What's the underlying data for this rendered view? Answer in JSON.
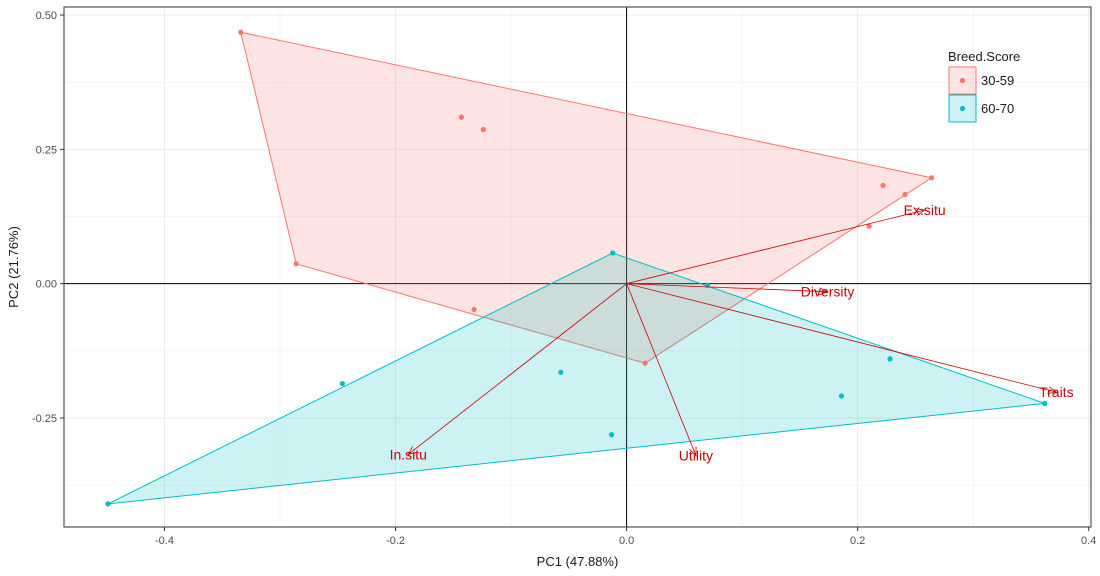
{
  "chart_data": {
    "type": "scatter",
    "subtype": "pca-biplot",
    "xlabel": "PC1 (47.88%)",
    "ylabel": "PC2 (21.76%)",
    "xlim": [
      -0.487,
      0.402
    ],
    "ylim": [
      -0.453,
      0.515
    ],
    "x_ticks": [
      -0.4,
      -0.2,
      0.0,
      0.2,
      0.4
    ],
    "x_tick_labels": [
      "-0.4",
      "-0.2",
      "0.0",
      "0.2",
      "0.4"
    ],
    "y_ticks": [
      -0.25,
      0.0,
      0.25,
      0.5
    ],
    "y_tick_labels": [
      "-0.25",
      "0.00",
      "0.25",
      "0.50"
    ],
    "grid": true,
    "reference_lines": {
      "x": 0,
      "y": 0
    },
    "legend": {
      "title": "Breed.Score",
      "position": "top-right"
    },
    "series": [
      {
        "name": "30-59",
        "color": "#F8766D",
        "fill": "#FFCCC8",
        "points": [
          [
            -0.334,
            0.468
          ],
          [
            -0.143,
            0.31
          ],
          [
            -0.124,
            0.287
          ],
          [
            0.264,
            0.197
          ],
          [
            0.222,
            0.183
          ],
          [
            0.241,
            0.166
          ],
          [
            0.21,
            0.107
          ],
          [
            -0.286,
            0.037
          ],
          [
            -0.132,
            -0.048
          ],
          [
            0.016,
            -0.148
          ]
        ],
        "hull": [
          [
            -0.334,
            0.468
          ],
          [
            0.264,
            0.197
          ],
          [
            0.016,
            -0.148
          ],
          [
            -0.286,
            0.037
          ]
        ]
      },
      {
        "name": "60-70",
        "color": "#00BFC4",
        "fill": "#A8E6E8",
        "points": [
          [
            -0.012,
            0.057
          ],
          [
            0.07,
            -0.003
          ],
          [
            -0.246,
            -0.186
          ],
          [
            -0.057,
            -0.165
          ],
          [
            0.228,
            -0.14
          ],
          [
            0.186,
            -0.209
          ],
          [
            0.362,
            -0.223
          ],
          [
            -0.013,
            -0.281
          ],
          [
            -0.449,
            -0.41
          ]
        ],
        "hull": [
          [
            -0.012,
            0.057
          ],
          [
            0.362,
            -0.223
          ],
          [
            -0.449,
            -0.41
          ]
        ]
      }
    ],
    "loadings": {
      "color": "#CC0000",
      "vectors": [
        {
          "name": "Ex.situ",
          "x": 0.258,
          "y": 0.137
        },
        {
          "name": "Diversity",
          "x": 0.174,
          "y": -0.015
        },
        {
          "name": "Traits",
          "x": 0.372,
          "y": -0.202
        },
        {
          "name": "Utility",
          "x": 0.06,
          "y": -0.32
        },
        {
          "name": "In.situ",
          "x": -0.189,
          "y": -0.318
        }
      ]
    }
  }
}
